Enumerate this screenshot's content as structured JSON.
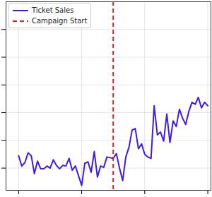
{
  "chart_data": {
    "type": "line",
    "x": [
      0,
      1,
      2,
      3,
      4,
      5,
      6,
      7,
      8,
      9,
      10,
      11,
      12,
      13,
      14,
      15,
      16,
      17,
      18,
      19,
      20,
      21,
      22,
      23,
      24,
      25,
      26,
      27,
      28,
      29,
      30,
      31,
      32,
      33,
      34,
      35,
      36,
      37,
      38,
      39,
      40,
      41,
      42,
      43,
      44,
      45,
      46,
      47,
      48,
      49,
      50,
      51,
      52,
      53,
      54,
      55,
      56,
      57,
      58,
      59,
      60
    ],
    "series": [
      {
        "name": "Ticket Sales",
        "color": "#3b1fe0",
        "values": [
          109,
          101.5,
          104,
          111,
          109,
          96,
          105,
          99.5,
          99.5,
          101.5,
          100,
          106,
          102,
          99.5,
          102,
          101.5,
          107,
          98.5,
          101.5,
          94.5,
          87.5,
          103.5,
          104.5,
          97,
          112,
          93.5,
          101.5,
          100.5,
          108,
          107.5,
          107,
          110.5,
          100,
          91,
          108,
          115,
          127.5,
          128.5,
          114,
          117.5,
          110,
          108,
          107,
          145,
          124,
          126,
          119.5,
          139,
          118.5,
          134,
          130,
          142.5,
          136,
          131.5,
          141,
          147.5,
          146,
          151,
          143.5,
          147.5,
          145
        ]
      }
    ],
    "vline": {
      "x": 30,
      "label": "Campaign Start",
      "color": "#e02020",
      "line_style": "dashed"
    },
    "xlim": [
      -4,
      61
    ],
    "xticks": [
      0,
      20,
      40,
      60
    ],
    "ylim": [
      84,
      220
    ],
    "yticks": [
      100,
      120,
      140,
      160,
      180,
      200
    ],
    "grid": true,
    "legend": "upper left",
    "tick_labels": false
  }
}
